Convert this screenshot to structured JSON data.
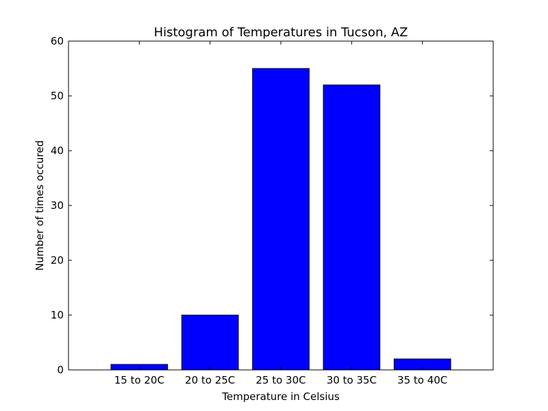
{
  "chart_data": {
    "type": "bar",
    "title": "Histogram of Temperatures in Tucson, AZ",
    "xlabel": "Temperature in Celsius",
    "ylabel": "Number of times occured",
    "categories": [
      "15 to 20C",
      "20 to 25C",
      "25 to 30C",
      "30 to 35C",
      "35 to 40C"
    ],
    "values": [
      1,
      10,
      55,
      52,
      2
    ],
    "ylim": [
      0,
      60
    ],
    "yticks": [
      "0",
      "10",
      "20",
      "30",
      "40",
      "50",
      "60"
    ],
    "bar_color": "#0000ff",
    "edge_color": "#000000",
    "grid": false,
    "legend": false
  }
}
